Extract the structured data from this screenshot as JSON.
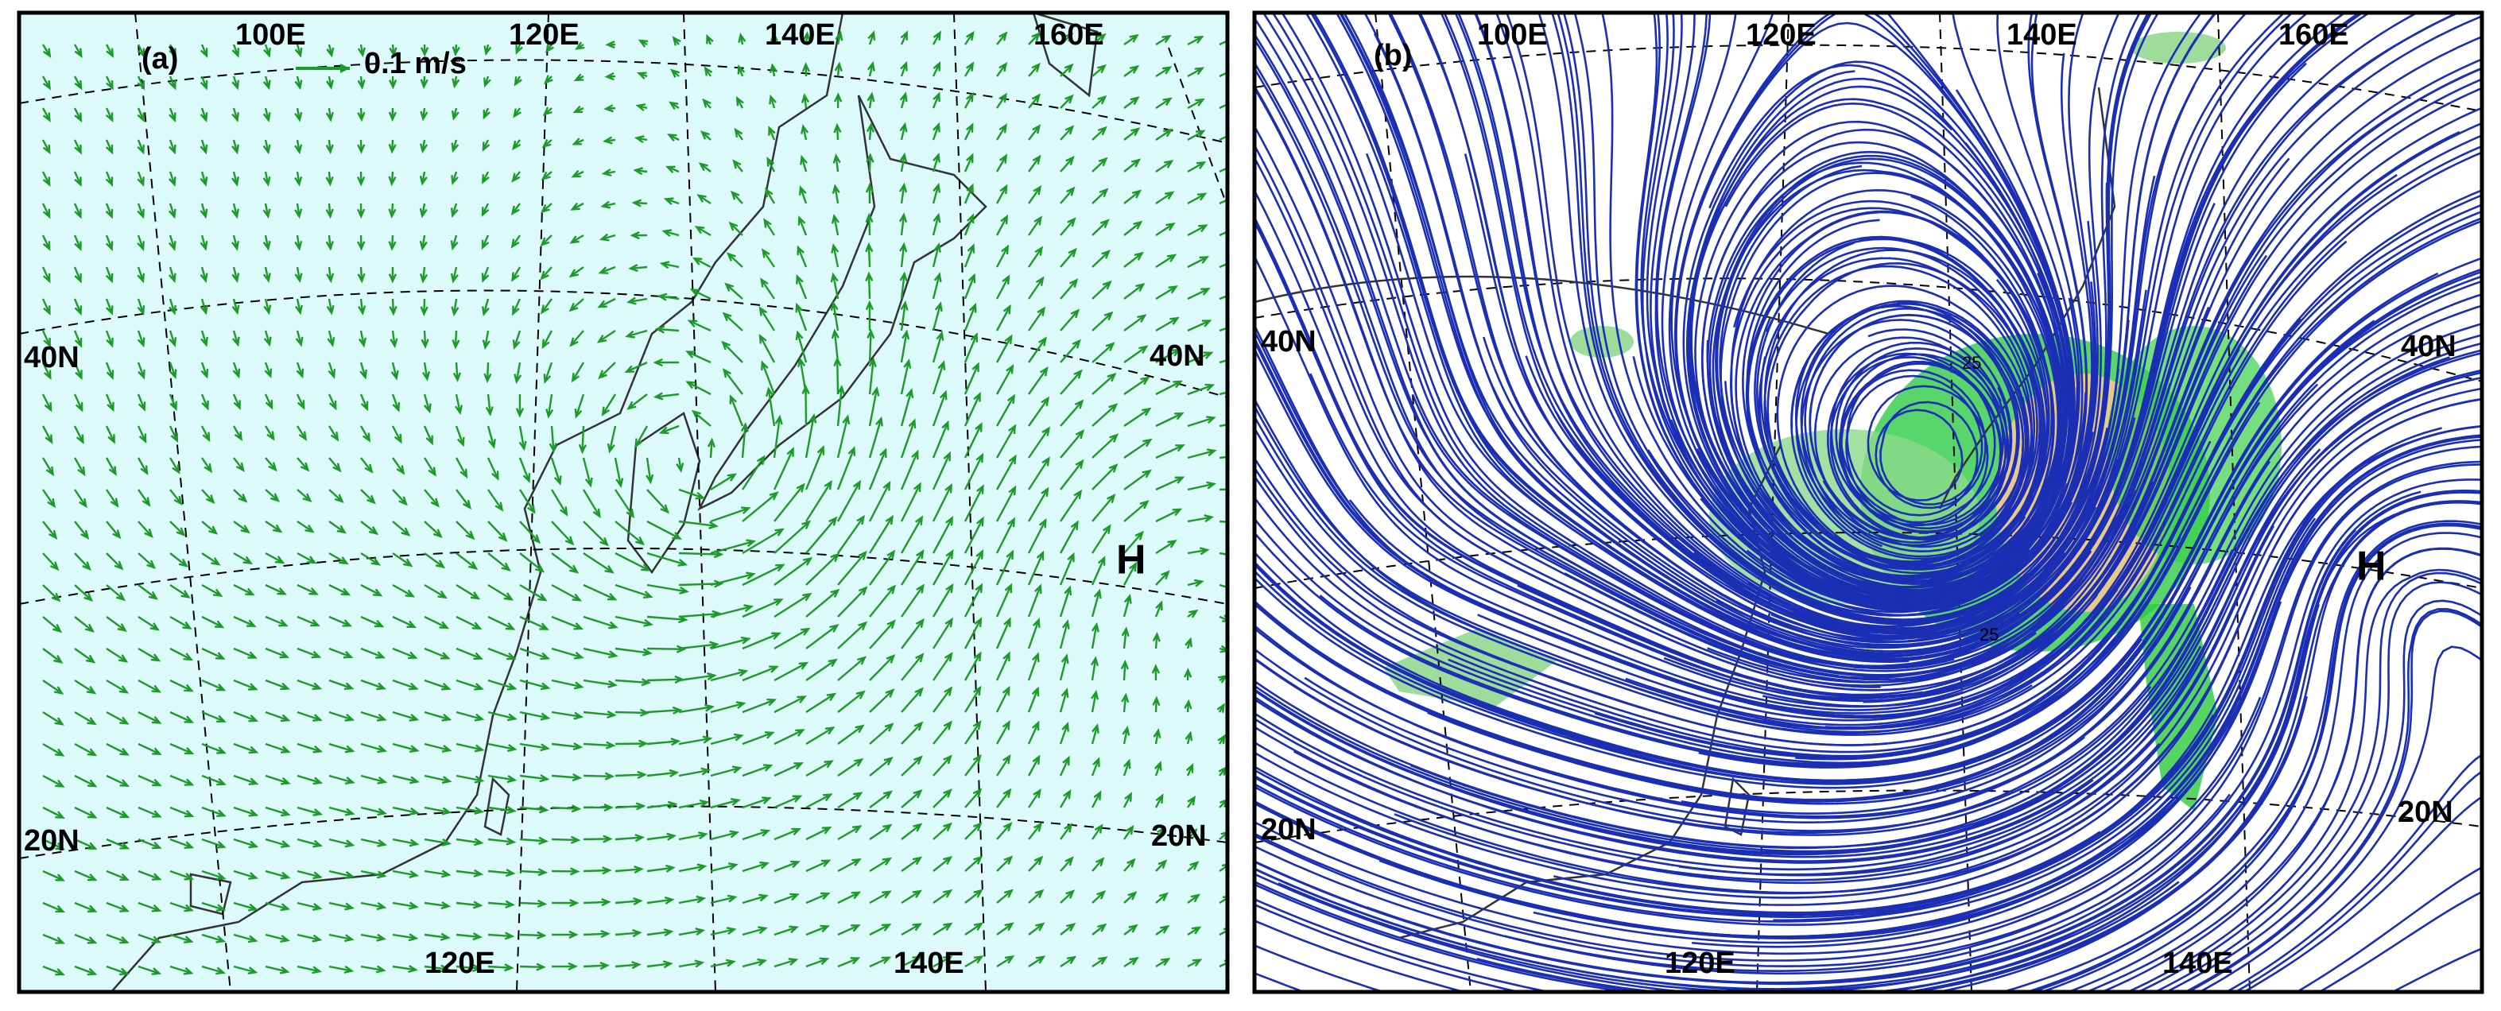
{
  "panels": [
    {
      "label": "(a)",
      "top_lon_labels": [
        "100E",
        "120E",
        "140E",
        "160E"
      ],
      "bottom_lon_labels": [
        "120E",
        "140E"
      ],
      "lat_labels_left": [
        "40N",
        "20N"
      ],
      "lat_labels_right": [
        "40N",
        "20N"
      ],
      "reference_vector": "0.1 m/s",
      "high_marker": "H"
    },
    {
      "label": "(b)",
      "top_lon_labels": [
        "100E",
        "120E",
        "140E",
        "160E"
      ],
      "bottom_lon_labels": [
        "120E",
        "140E"
      ],
      "lat_labels_left": [
        "40N",
        "20N"
      ],
      "lat_labels_right": [
        "40N",
        "20N"
      ],
      "high_marker": "H",
      "contour_labels": [
        "25",
        "25"
      ]
    }
  ]
}
